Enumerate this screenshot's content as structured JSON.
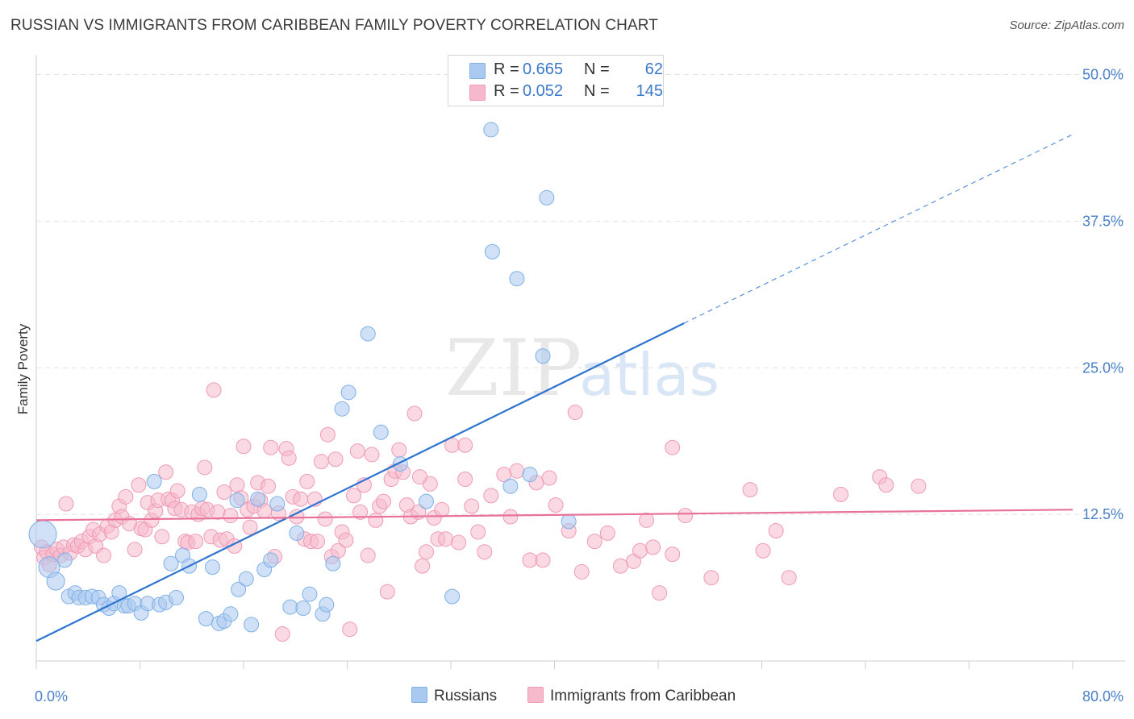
{
  "title": "RUSSIAN VS IMMIGRANTS FROM CARIBBEAN FAMILY POVERTY CORRELATION CHART",
  "source": "Source: ZipAtlas.com",
  "watermark": {
    "zip": "ZIP",
    "atlas": "atlas"
  },
  "legend": {
    "r_label": "R =",
    "n_label": "N =",
    "rows": [
      {
        "series": "Russians",
        "r": "0.665",
        "n": "62"
      },
      {
        "series": "Immigrants from Caribbean",
        "r": "0.052",
        "n": "145"
      }
    ]
  },
  "colors": {
    "blue_fill": "#a9c9f0",
    "blue_stroke": "#7fb0e6",
    "blue_line": "#2f74cf",
    "pink_fill": "#f6b9cc",
    "pink_stroke": "#ef9ab6",
    "pink_line": "#e8729a",
    "tick_label": "#4a80c8"
  },
  "chart_data": {
    "type": "scatter",
    "title": "RUSSIAN VS IMMIGRANTS FROM CARIBBEAN FAMILY POVERTY CORRELATION CHART",
    "xlabel": "",
    "ylabel": "Family Poverty",
    "xlim": [
      0,
      80
    ],
    "ylim": [
      0,
      51
    ],
    "x_tick_labels": [
      {
        "value": 0,
        "label": "0.0%"
      },
      {
        "value": 80,
        "label": "80.0%"
      }
    ],
    "y_tick_labels": [
      {
        "value": 12.5,
        "label": "12.5%"
      },
      {
        "value": 25,
        "label": "25.0%"
      },
      {
        "value": 37.5,
        "label": "37.5%"
      },
      {
        "value": 50,
        "label": "50.0%"
      }
    ],
    "grid": true,
    "legend_position": "top-center",
    "series": [
      {
        "name": "Russians",
        "color": "#a9c9f0",
        "trend": {
          "x": [
            0,
            50
          ],
          "y": [
            1.7,
            28.8
          ],
          "dashed_extension_to_x": 80,
          "dashed_extension_y": 44.9
        },
        "points": [
          [
            0.5,
            10.8
          ],
          [
            1.0,
            8.0
          ],
          [
            1.5,
            6.8
          ],
          [
            2.2,
            8.6
          ],
          [
            2.5,
            5.5
          ],
          [
            3.0,
            5.8
          ],
          [
            3.3,
            5.4
          ],
          [
            3.8,
            5.4
          ],
          [
            4.3,
            5.5
          ],
          [
            4.8,
            5.4
          ],
          [
            5.2,
            4.8
          ],
          [
            5.6,
            4.5
          ],
          [
            6.0,
            4.9
          ],
          [
            6.4,
            5.8
          ],
          [
            6.8,
            4.7
          ],
          [
            7.1,
            4.7
          ],
          [
            7.6,
            4.9
          ],
          [
            8.1,
            4.1
          ],
          [
            8.6,
            4.9
          ],
          [
            9.1,
            15.3
          ],
          [
            9.5,
            4.8
          ],
          [
            10.0,
            5.0
          ],
          [
            10.4,
            8.3
          ],
          [
            10.8,
            5.4
          ],
          [
            11.3,
            9.0
          ],
          [
            11.8,
            8.1
          ],
          [
            12.6,
            14.2
          ],
          [
            13.1,
            3.6
          ],
          [
            13.6,
            8.0
          ],
          [
            14.1,
            3.2
          ],
          [
            14.5,
            3.4
          ],
          [
            15.0,
            4.0
          ],
          [
            15.5,
            13.7
          ],
          [
            15.6,
            6.1
          ],
          [
            16.2,
            7.0
          ],
          [
            16.6,
            3.1
          ],
          [
            17.1,
            13.8
          ],
          [
            17.6,
            7.8
          ],
          [
            18.1,
            8.6
          ],
          [
            18.6,
            13.4
          ],
          [
            19.6,
            4.6
          ],
          [
            20.1,
            10.9
          ],
          [
            20.6,
            4.5
          ],
          [
            21.1,
            5.7
          ],
          [
            22.1,
            4.0
          ],
          [
            22.4,
            4.8
          ],
          [
            22.9,
            8.3
          ],
          [
            23.6,
            21.5
          ],
          [
            24.1,
            22.9
          ],
          [
            25.6,
            27.9
          ],
          [
            26.6,
            19.5
          ],
          [
            28.1,
            16.8
          ],
          [
            30.1,
            13.6
          ],
          [
            32.1,
            5.5
          ],
          [
            35.1,
            45.3
          ],
          [
            35.2,
            34.9
          ],
          [
            36.6,
            14.9
          ],
          [
            37.1,
            32.6
          ],
          [
            38.1,
            15.9
          ],
          [
            39.1,
            26.0
          ],
          [
            39.4,
            39.5
          ],
          [
            41.1,
            11.9
          ]
        ]
      },
      {
        "name": "Immigrants from Caribbean",
        "color": "#f6b9cc",
        "trend": {
          "x": [
            0,
            80
          ],
          "y": [
            12.0,
            12.9
          ]
        },
        "points": [
          [
            0.4,
            9.7
          ],
          [
            0.6,
            8.8
          ],
          [
            0.8,
            9.3
          ],
          [
            1.0,
            8.2
          ],
          [
            1.3,
            9.1
          ],
          [
            1.6,
            9.5
          ],
          [
            1.9,
            9.0
          ],
          [
            2.1,
            9.7
          ],
          [
            2.3,
            13.4
          ],
          [
            2.6,
            9.2
          ],
          [
            2.9,
            9.9
          ],
          [
            3.2,
            9.8
          ],
          [
            3.5,
            10.2
          ],
          [
            3.8,
            9.5
          ],
          [
            4.1,
            10.6
          ],
          [
            4.4,
            11.2
          ],
          [
            4.6,
            9.8
          ],
          [
            4.9,
            10.8
          ],
          [
            5.2,
            9.0
          ],
          [
            5.5,
            11.5
          ],
          [
            5.8,
            11.0
          ],
          [
            6.1,
            12.0
          ],
          [
            6.4,
            13.2
          ],
          [
            6.6,
            12.3
          ],
          [
            6.9,
            14.0
          ],
          [
            7.2,
            11.7
          ],
          [
            7.6,
            9.5
          ],
          [
            7.9,
            15.0
          ],
          [
            8.1,
            11.3
          ],
          [
            8.4,
            11.2
          ],
          [
            8.6,
            13.5
          ],
          [
            8.9,
            12.0
          ],
          [
            9.2,
            12.8
          ],
          [
            9.4,
            13.7
          ],
          [
            9.7,
            10.6
          ],
          [
            10.0,
            16.1
          ],
          [
            10.2,
            13.8
          ],
          [
            10.5,
            13.7
          ],
          [
            10.7,
            13.0
          ],
          [
            10.9,
            14.5
          ],
          [
            11.2,
            12.9
          ],
          [
            11.5,
            10.2
          ],
          [
            11.7,
            10.1
          ],
          [
            12.0,
            12.7
          ],
          [
            12.3,
            10.2
          ],
          [
            12.5,
            12.5
          ],
          [
            12.8,
            13.0
          ],
          [
            13.0,
            16.5
          ],
          [
            13.2,
            12.9
          ],
          [
            13.5,
            10.6
          ],
          [
            13.7,
            23.1
          ],
          [
            14.0,
            12.7
          ],
          [
            14.2,
            10.3
          ],
          [
            14.5,
            14.4
          ],
          [
            14.7,
            10.4
          ],
          [
            15.0,
            12.4
          ],
          [
            15.3,
            9.8
          ],
          [
            15.5,
            15.0
          ],
          [
            15.8,
            13.9
          ],
          [
            16.0,
            18.3
          ],
          [
            16.3,
            12.9
          ],
          [
            16.5,
            11.4
          ],
          [
            16.8,
            13.2
          ],
          [
            17.1,
            15.2
          ],
          [
            17.3,
            13.7
          ],
          [
            17.6,
            12.8
          ],
          [
            17.9,
            14.9
          ],
          [
            18.1,
            18.2
          ],
          [
            18.4,
            8.9
          ],
          [
            18.7,
            12.6
          ],
          [
            19.0,
            2.3
          ],
          [
            19.3,
            18.1
          ],
          [
            19.5,
            17.3
          ],
          [
            19.8,
            14.0
          ],
          [
            20.1,
            12.3
          ],
          [
            20.4,
            13.8
          ],
          [
            20.7,
            10.4
          ],
          [
            20.9,
            15.3
          ],
          [
            21.2,
            10.2
          ],
          [
            21.5,
            13.8
          ],
          [
            21.7,
            10.2
          ],
          [
            22.0,
            17.0
          ],
          [
            22.3,
            12.1
          ],
          [
            22.5,
            19.3
          ],
          [
            22.8,
            8.9
          ],
          [
            23.1,
            17.2
          ],
          [
            23.3,
            9.4
          ],
          [
            23.6,
            11.0
          ],
          [
            23.9,
            10.3
          ],
          [
            24.2,
            2.7
          ],
          [
            24.5,
            14.1
          ],
          [
            24.8,
            17.9
          ],
          [
            25.0,
            12.7
          ],
          [
            25.3,
            15.0
          ],
          [
            25.6,
            9.0
          ],
          [
            25.9,
            17.6
          ],
          [
            26.2,
            12.0
          ],
          [
            26.5,
            13.2
          ],
          [
            26.8,
            13.6
          ],
          [
            27.1,
            5.9
          ],
          [
            27.4,
            15.5
          ],
          [
            27.7,
            16.2
          ],
          [
            28.0,
            18.0
          ],
          [
            28.3,
            16.1
          ],
          [
            28.6,
            13.3
          ],
          [
            28.9,
            12.3
          ],
          [
            29.2,
            21.1
          ],
          [
            29.5,
            12.7
          ],
          [
            29.8,
            8.1
          ],
          [
            30.1,
            9.3
          ],
          [
            30.4,
            15.1
          ],
          [
            30.7,
            12.2
          ],
          [
            31.0,
            10.4
          ],
          [
            31.3,
            12.9
          ],
          [
            31.6,
            10.4
          ],
          [
            32.1,
            18.4
          ],
          [
            32.6,
            10.1
          ],
          [
            33.1,
            15.5
          ],
          [
            33.6,
            13.2
          ],
          [
            34.1,
            11.0
          ],
          [
            34.6,
            9.3
          ],
          [
            35.1,
            14.1
          ],
          [
            36.1,
            15.9
          ],
          [
            36.6,
            12.3
          ],
          [
            37.1,
            16.2
          ],
          [
            38.1,
            8.6
          ],
          [
            38.6,
            15.2
          ],
          [
            39.1,
            8.6
          ],
          [
            39.6,
            15.6
          ],
          [
            40.1,
            13.3
          ],
          [
            41.1,
            11.1
          ],
          [
            42.1,
            7.6
          ],
          [
            43.1,
            10.2
          ],
          [
            44.1,
            10.9
          ],
          [
            45.1,
            8.1
          ],
          [
            46.1,
            8.5
          ],
          [
            46.6,
            9.4
          ],
          [
            47.1,
            12.0
          ],
          [
            47.6,
            9.7
          ],
          [
            48.1,
            5.8
          ],
          [
            49.1,
            9.1
          ],
          [
            50.1,
            12.4
          ],
          [
            52.1,
            7.1
          ],
          [
            55.1,
            14.6
          ],
          [
            56.1,
            9.4
          ],
          [
            57.1,
            11.1
          ],
          [
            58.1,
            7.1
          ],
          [
            62.1,
            14.2
          ],
          [
            65.1,
            15.7
          ],
          [
            65.6,
            15.0
          ],
          [
            68.1,
            14.9
          ],
          [
            49.1,
            18.2
          ],
          [
            41.6,
            21.2
          ],
          [
            29.6,
            15.7
          ],
          [
            33.1,
            18.4
          ]
        ]
      }
    ]
  }
}
